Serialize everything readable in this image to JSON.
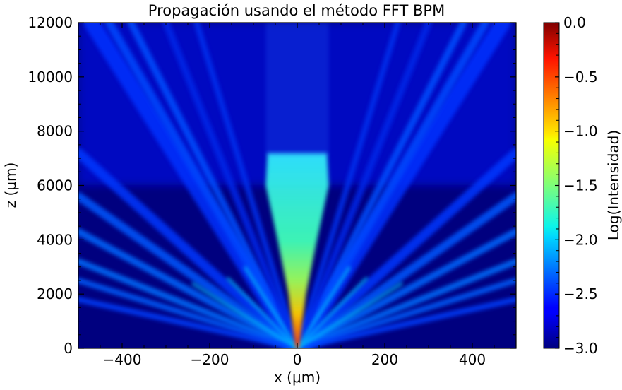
{
  "chart_data": {
    "type": "heatmap",
    "title": "Propagación usando el método FFT BPM",
    "xlabel": "x (μm)",
    "ylabel": "z (μm)",
    "xlim": [
      -500,
      500
    ],
    "ylim": [
      0,
      12000
    ],
    "x_ticks": [
      -400,
      -200,
      0,
      200,
      400
    ],
    "x_tick_labels": [
      "−400",
      "−200",
      "0",
      "200",
      "400"
    ],
    "y_ticks": [
      0,
      2000,
      4000,
      6000,
      8000,
      10000,
      12000
    ],
    "y_tick_labels": [
      "0",
      "2000",
      "4000",
      "6000",
      "8000",
      "10000",
      "12000"
    ],
    "colorbar": {
      "label": "Log(Intensidad)",
      "range": [
        -3.0,
        0.0
      ],
      "ticks": [
        0.0,
        -0.5,
        -1.0,
        -1.5,
        -2.0,
        -2.5,
        -3.0
      ],
      "tick_labels": [
        "0.0",
        "−0.5",
        "−1.0",
        "−1.5",
        "−2.0",
        "−2.5",
        "−3.0"
      ],
      "colormap": "jet"
    },
    "description_values": {
      "background_log_intensity": -2.9,
      "central_beam_peak_log_intensity": -0.2,
      "side_lobe_log_intensity": -2.3
    }
  }
}
